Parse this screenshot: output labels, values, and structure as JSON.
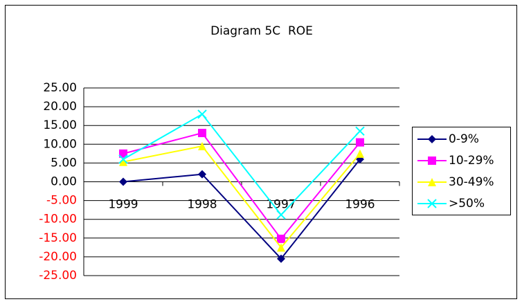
{
  "chart_data": {
    "type": "line",
    "title": "Diagram 5C  ROE",
    "categories": [
      "1999",
      "1998",
      "1997",
      "1996"
    ],
    "series": [
      {
        "name": "0-9%",
        "color": "#000080",
        "marker": "diamond",
        "values": [
          0,
          2,
          -20.5,
          6
        ]
      },
      {
        "name": "10-29%",
        "color": "#ff00ff",
        "marker": "square",
        "values": [
          7.5,
          13,
          -15.2,
          10.5
        ]
      },
      {
        "name": "30-49%",
        "color": "#ffff00",
        "marker": "triangle",
        "values": [
          5.3,
          9.5,
          -17.5,
          7.5
        ]
      },
      {
        "name": ">50%",
        "color": "#00ffff",
        "marker": "x",
        "values": [
          6,
          18,
          -8.8,
          13.5
        ]
      }
    ],
    "ylim": [
      -25,
      25
    ],
    "yticks": [
      {
        "value": 25,
        "label": "25.00"
      },
      {
        "value": 20,
        "label": "20.00"
      },
      {
        "value": 15,
        "label": "15.00"
      },
      {
        "value": 10,
        "label": "10.00"
      },
      {
        "value": 5,
        "label": "5.00"
      },
      {
        "value": 0,
        "label": "0.00"
      },
      {
        "value": -5,
        "label": "-5.00"
      },
      {
        "value": -10,
        "label": "-10.00"
      },
      {
        "value": -15,
        "label": "-15.00"
      },
      {
        "value": -20,
        "label": "-20.00"
      },
      {
        "value": -25,
        "label": "-25.00"
      }
    ],
    "negative_tick_color": "#ff0000",
    "grid": true,
    "legend": "right"
  }
}
